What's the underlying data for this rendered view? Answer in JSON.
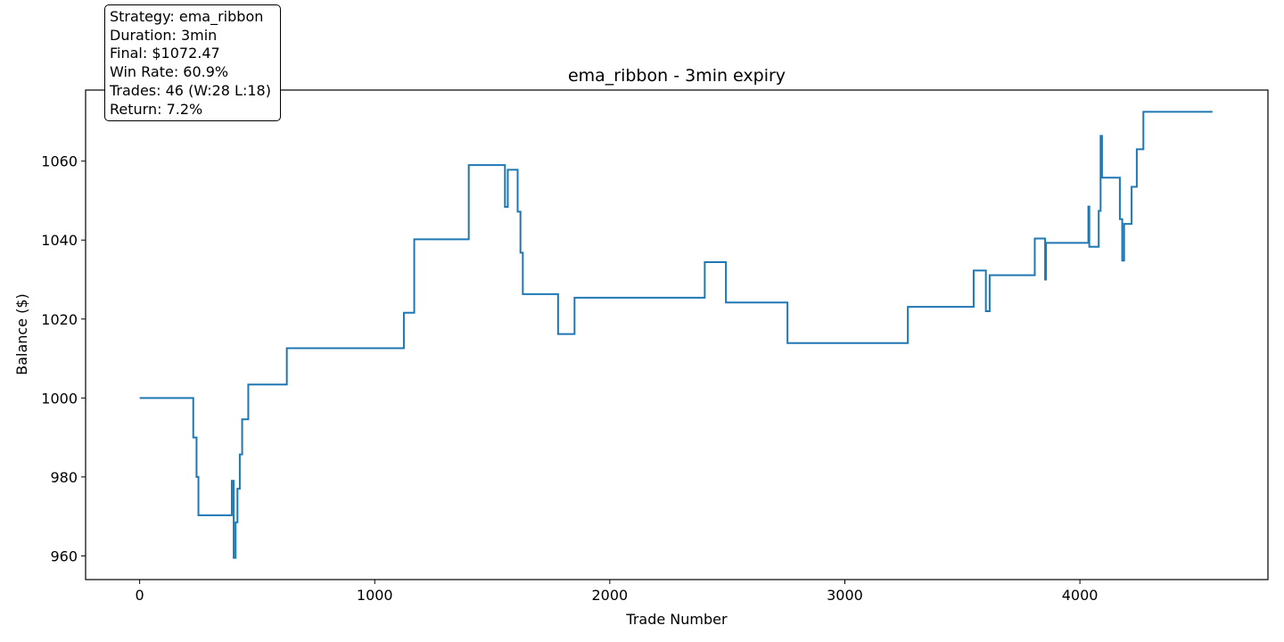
{
  "chart_data": {
    "type": "line",
    "title": "ema_ribbon - 3min expiry",
    "xlabel": "Trade Number",
    "ylabel": "Balance ($)",
    "xlim": [
      -230,
      4800
    ],
    "ylim": [
      954,
      1078
    ],
    "xticks": [
      0,
      1000,
      2000,
      3000,
      4000
    ],
    "yticks": [
      960,
      980,
      1000,
      1020,
      1040,
      1060
    ],
    "grid": false,
    "color": "#1f77b4",
    "points": [
      [
        0,
        1000
      ],
      [
        228,
        1000
      ],
      [
        228,
        990
      ],
      [
        242,
        990
      ],
      [
        242,
        980
      ],
      [
        250,
        980
      ],
      [
        250,
        970.3
      ],
      [
        392,
        970.3
      ],
      [
        392,
        979
      ],
      [
        400,
        979
      ],
      [
        400,
        959.5
      ],
      [
        408,
        959.5
      ],
      [
        408,
        968.5
      ],
      [
        416,
        968.5
      ],
      [
        416,
        977
      ],
      [
        426,
        977
      ],
      [
        426,
        985.7
      ],
      [
        436,
        985.7
      ],
      [
        436,
        994.6
      ],
      [
        462,
        994.6
      ],
      [
        462,
        1003.4
      ],
      [
        626,
        1003.4
      ],
      [
        626,
        1012.6
      ],
      [
        1124,
        1012.6
      ],
      [
        1124,
        1021.6
      ],
      [
        1168,
        1021.6
      ],
      [
        1168,
        1040.2
      ],
      [
        1400,
        1040.2
      ],
      [
        1400,
        1059
      ],
      [
        1554,
        1059
      ],
      [
        1554,
        1048.4
      ],
      [
        1566,
        1048.4
      ],
      [
        1566,
        1057.8
      ],
      [
        1608,
        1057.8
      ],
      [
        1608,
        1047.2
      ],
      [
        1620,
        1047.2
      ],
      [
        1620,
        1036.8
      ],
      [
        1630,
        1036.8
      ],
      [
        1630,
        1026.3
      ],
      [
        1780,
        1026.3
      ],
      [
        1780,
        1016.2
      ],
      [
        1850,
        1016.2
      ],
      [
        1850,
        1025.4
      ],
      [
        2404,
        1025.4
      ],
      [
        2404,
        1034.4
      ],
      [
        2494,
        1034.4
      ],
      [
        2494,
        1024.2
      ],
      [
        2756,
        1024.2
      ],
      [
        2756,
        1013.9
      ],
      [
        3268,
        1013.9
      ],
      [
        3268,
        1023.1
      ],
      [
        3548,
        1023.1
      ],
      [
        3548,
        1032.3
      ],
      [
        3600,
        1032.3
      ],
      [
        3600,
        1022
      ],
      [
        3616,
        1022
      ],
      [
        3616,
        1031.1
      ],
      [
        3808,
        1031.1
      ],
      [
        3808,
        1040.4
      ],
      [
        3852,
        1040.4
      ],
      [
        3852,
        1030
      ],
      [
        3856,
        1030
      ],
      [
        3856,
        1039.3
      ],
      [
        4036,
        1039.3
      ],
      [
        4036,
        1048.5
      ],
      [
        4040,
        1048.5
      ],
      [
        4040,
        1038.3
      ],
      [
        4080,
        1038.3
      ],
      [
        4080,
        1047.4
      ],
      [
        4088,
        1047.4
      ],
      [
        4088,
        1066.4
      ],
      [
        4094,
        1066.4
      ],
      [
        4094,
        1055.8
      ],
      [
        4170,
        1055.8
      ],
      [
        4170,
        1045.3
      ],
      [
        4180,
        1045.3
      ],
      [
        4180,
        1034.8
      ],
      [
        4188,
        1034.8
      ],
      [
        4188,
        1044.1
      ],
      [
        4220,
        1044.1
      ],
      [
        4220,
        1053.5
      ],
      [
        4242,
        1053.5
      ],
      [
        4242,
        1063
      ],
      [
        4270,
        1063
      ],
      [
        4270,
        1072.5
      ],
      [
        4564,
        1072.5
      ]
    ]
  },
  "stats": {
    "strategy": "Strategy: ema_ribbon",
    "duration": "Duration: 3min",
    "final": "Final: $1072.47",
    "win_rate": "Win Rate: 60.9%",
    "trades": "Trades: 46 (W:28 L:18)",
    "return": "Return: 7.2%"
  }
}
